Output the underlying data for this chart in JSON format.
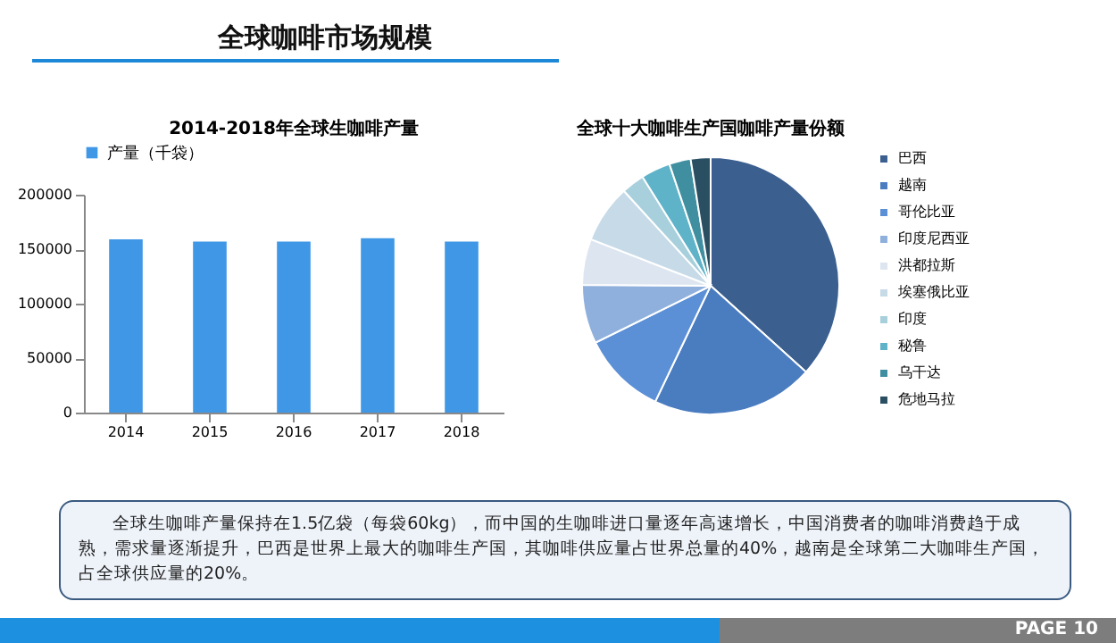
{
  "chart_data": [
    {
      "type": "bar",
      "title": "2014-2018年全球生咖啡产量",
      "categories": [
        "2014",
        "2015",
        "2016",
        "2017",
        "2018"
      ],
      "series": [
        {
          "name": "产量（千袋）",
          "color": "#3f97e6",
          "values": [
            159000,
            157000,
            157000,
            160000,
            157000
          ]
        }
      ],
      "ylim": [
        0,
        200000
      ],
      "yticks": [
        0,
        50000,
        100000,
        150000,
        200000
      ],
      "grid": false,
      "legend": "top"
    },
    {
      "type": "pie",
      "title": "全球十大咖啡生产国咖啡产量份额",
      "categories": [
        "巴西",
        "越南",
        "哥伦比亚",
        "印度尼西亚",
        "洪都拉斯",
        "埃塞俄比亚",
        "印度",
        "秘鲁",
        "乌干达",
        "危地马拉"
      ],
      "values": [
        36.7,
        20.4,
        10.6,
        7.4,
        5.8,
        7.3,
        2.9,
        3.7,
        2.7,
        2.5
      ],
      "colors": [
        "#3b5f8f",
        "#4a7cc0",
        "#5b8fd6",
        "#8fb0dc",
        "#dde6f0",
        "#c6dae8",
        "#a8d0dc",
        "#5fb3c9",
        "#3f8fa0",
        "#2a4f62"
      ],
      "legend": "right"
    },
    {
      "type": "other",
      "title": "全球咖啡市场规模",
      "annotations": [
        "全球生咖啡产量保持在1.5亿袋（每袋60kg），而中国的生咖啡进口量逐年高速增长，中国消费者的咖啡消费趋于成熟，需求量逐渐提升，巴西是世界上最大的咖啡生产国，其咖啡供应量占世界总量的40%，越南是全球第二大咖啡生产国，占全球供应量的20%。",
        "PAGE 10"
      ]
    }
  ]
}
